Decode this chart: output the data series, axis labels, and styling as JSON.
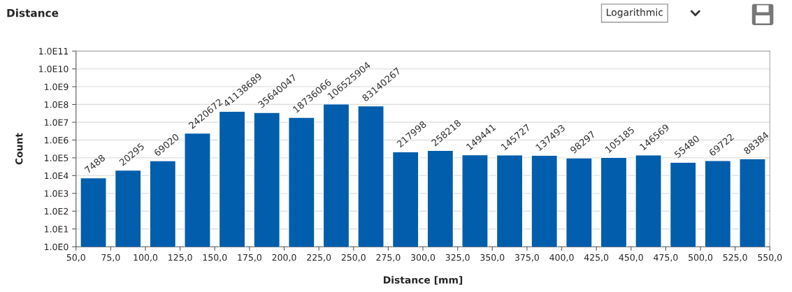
{
  "chart_data": {
    "type": "histogram",
    "title": "Distance",
    "xlabel": "Distance [mm]",
    "ylabel": "Count",
    "annotations": [
      "Logarithmic"
    ],
    "bins": [
      50,
      75,
      100,
      125,
      150,
      175,
      200,
      225,
      250,
      275,
      300,
      325,
      350,
      375,
      400,
      425,
      450,
      475,
      500,
      525,
      550
    ],
    "values": [
      7488,
      20295,
      69020,
      2420672,
      41138689,
      35640047,
      18736066,
      106525904,
      83140267,
      217998,
      258218,
      149441,
      145727,
      137493,
      98297,
      105185,
      146569,
      55480,
      69722,
      88384
    ],
    "color": "#005eac",
    "data_labels": true,
    "log": "y",
    "grid": "y",
    "xlim": [
      50,
      550
    ],
    "xticks": [
      {
        "value": 50,
        "label": "50,0"
      },
      {
        "value": 75,
        "label": "75,0"
      },
      {
        "value": 100,
        "label": "100,0"
      },
      {
        "value": 125,
        "label": "125,0"
      },
      {
        "value": 150,
        "label": "150,0"
      },
      {
        "value": 175,
        "label": "175,0"
      },
      {
        "value": 200,
        "label": "200,0"
      },
      {
        "value": 225,
        "label": "225,0"
      },
      {
        "value": 250,
        "label": "250,0"
      },
      {
        "value": 275,
        "label": "275,0"
      },
      {
        "value": 300,
        "label": "300,0"
      },
      {
        "value": 325,
        "label": "325,0"
      },
      {
        "value": 350,
        "label": "350,0"
      },
      {
        "value": 375,
        "label": "375,0"
      },
      {
        "value": 400,
        "label": "400,0"
      },
      {
        "value": 425,
        "label": "425,0"
      },
      {
        "value": 450,
        "label": "450,0"
      },
      {
        "value": 475,
        "label": "475,0"
      },
      {
        "value": 500,
        "label": "500,0"
      },
      {
        "value": 525,
        "label": "525,0"
      },
      {
        "value": 550,
        "label": "550,0"
      }
    ],
    "ylim": [
      1,
      100000000000
    ],
    "yticks": [
      {
        "value": 1,
        "label": "1.0E0"
      },
      {
        "value": 10,
        "label": "1.0E1"
      },
      {
        "value": 100,
        "label": "1.0E2"
      },
      {
        "value": 1000,
        "label": "1.0E3"
      },
      {
        "value": 10000,
        "label": "1.0E4"
      },
      {
        "value": 100000,
        "label": "1.0E5"
      },
      {
        "value": 1000000,
        "label": "1.0E6"
      },
      {
        "value": 10000000,
        "label": "1.0E7"
      },
      {
        "value": 100000000,
        "label": "1.0E8"
      },
      {
        "value": 1000000000,
        "label": "1.0E9"
      },
      {
        "value": 10000000000,
        "label": "1.0E10"
      },
      {
        "value": 100000000000,
        "label": "1.0E11"
      }
    ]
  }
}
